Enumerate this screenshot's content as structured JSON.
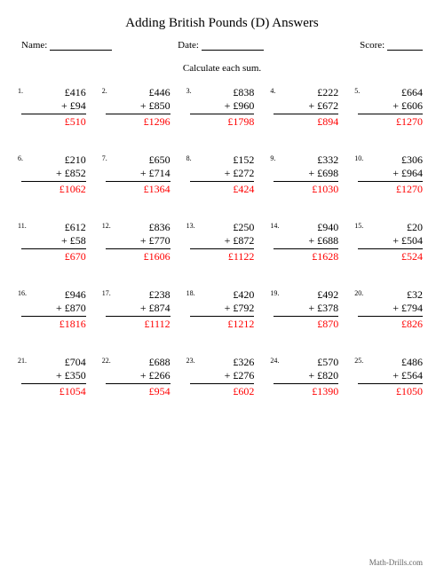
{
  "title": "Adding British Pounds (D) Answers",
  "labels": {
    "name": "Name:",
    "date": "Date:",
    "score": "Score:"
  },
  "instruction": "Calculate each sum.",
  "currency": "£",
  "plus": "+",
  "footer": "Math-Drills.com",
  "answer_color": "#ff0000",
  "problems": [
    {
      "n": 1,
      "a": 416,
      "b": 94,
      "s": 510
    },
    {
      "n": 2,
      "a": 446,
      "b": 850,
      "s": 1296
    },
    {
      "n": 3,
      "a": 838,
      "b": 960,
      "s": 1798
    },
    {
      "n": 4,
      "a": 222,
      "b": 672,
      "s": 894
    },
    {
      "n": 5,
      "a": 664,
      "b": 606,
      "s": 1270
    },
    {
      "n": 6,
      "a": 210,
      "b": 852,
      "s": 1062
    },
    {
      "n": 7,
      "a": 650,
      "b": 714,
      "s": 1364
    },
    {
      "n": 8,
      "a": 152,
      "b": 272,
      "s": 424
    },
    {
      "n": 9,
      "a": 332,
      "b": 698,
      "s": 1030
    },
    {
      "n": 10,
      "a": 306,
      "b": 964,
      "s": 1270
    },
    {
      "n": 11,
      "a": 612,
      "b": 58,
      "s": 670
    },
    {
      "n": 12,
      "a": 836,
      "b": 770,
      "s": 1606
    },
    {
      "n": 13,
      "a": 250,
      "b": 872,
      "s": 1122
    },
    {
      "n": 14,
      "a": 940,
      "b": 688,
      "s": 1628
    },
    {
      "n": 15,
      "a": 20,
      "b": 504,
      "s": 524
    },
    {
      "n": 16,
      "a": 946,
      "b": 870,
      "s": 1816
    },
    {
      "n": 17,
      "a": 238,
      "b": 874,
      "s": 1112
    },
    {
      "n": 18,
      "a": 420,
      "b": 792,
      "s": 1212
    },
    {
      "n": 19,
      "a": 492,
      "b": 378,
      "s": 870
    },
    {
      "n": 20,
      "a": 32,
      "b": 794,
      "s": 826
    },
    {
      "n": 21,
      "a": 704,
      "b": 350,
      "s": 1054
    },
    {
      "n": 22,
      "a": 688,
      "b": 266,
      "s": 954
    },
    {
      "n": 23,
      "a": 326,
      "b": 276,
      "s": 602
    },
    {
      "n": 24,
      "a": 570,
      "b": 820,
      "s": 1390
    },
    {
      "n": 25,
      "a": 486,
      "b": 564,
      "s": 1050
    }
  ]
}
